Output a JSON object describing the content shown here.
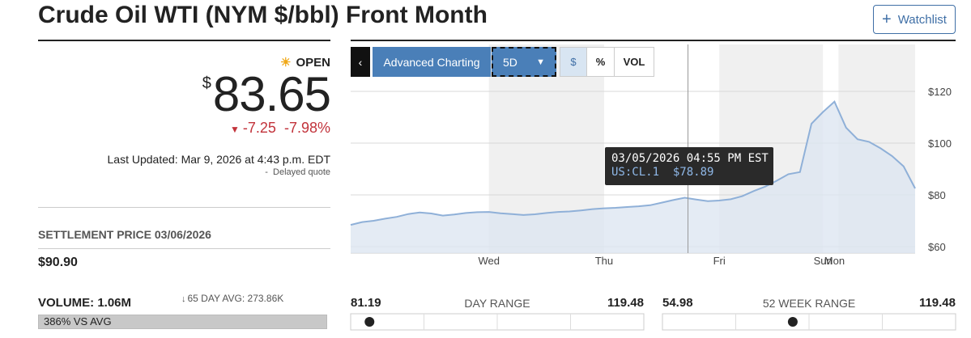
{
  "header": {
    "title": "Crude Oil WTI (NYM $/bbl) Front Month",
    "watchlist": "Watchlist"
  },
  "quote": {
    "status": "OPEN",
    "currency": "$",
    "price": 83.65,
    "change": "-7.25",
    "change_pct": "-7.98%",
    "last_updated": "Last Updated: Mar 9, 2026 at 4:43 p.m. EDT",
    "delayed": "Delayed quote"
  },
  "settlement": {
    "label": "SETTLEMENT PRICE 03/06/2026",
    "value": "$90.90"
  },
  "volume": {
    "label": "VOLUME: 1.06M",
    "avg_label": "65 DAY AVG: 273.86K",
    "vs_avg": "386% VS AVG"
  },
  "day_range": {
    "low": 81.19,
    "label": "DAY RANGE",
    "high": 119.48
  },
  "week52_range": {
    "low": 54.98,
    "label": "52 WEEK RANGE",
    "high": 119.48
  },
  "chart_data": {
    "type": "line",
    "toolbar": [
      "Advanced Charting",
      "5D",
      "$",
      "%",
      "VOL"
    ],
    "categories": [
      null,
      null,
      null,
      null,
      null,
      null,
      null,
      null,
      null,
      null,
      null,
      null,
      "Wed",
      null,
      null,
      null,
      null,
      null,
      null,
      null,
      null,
      null,
      "Thu",
      null,
      null,
      null,
      null,
      null,
      null,
      null,
      null,
      null,
      "Fri",
      null,
      null,
      null,
      null,
      null,
      null,
      null,
      null,
      "Sun",
      "Mon",
      null,
      null,
      null,
      null,
      null,
      null,
      null
    ],
    "values": [
      68.4,
      69.5,
      70.0,
      70.8,
      71.5,
      72.6,
      73.2,
      72.8,
      72.0,
      72.4,
      73.0,
      73.3,
      73.4,
      72.9,
      72.6,
      72.2,
      72.5,
      73.0,
      73.4,
      73.6,
      74.0,
      74.5,
      74.8,
      75.0,
      75.3,
      75.6,
      76.0,
      77.0,
      78.0,
      78.89,
      78.2,
      77.6,
      77.8,
      78.3,
      79.5,
      81.5,
      83.2,
      85.5,
      88.0,
      88.8,
      107.5,
      112.0,
      116.0,
      106.0,
      101.5,
      100.5,
      98.0,
      95.0,
      91.0,
      82.5
    ],
    "color": "#8fb0d8",
    "ylim": [
      57.5,
      138.1
    ],
    "yticks": [
      {
        "value": 60,
        "label": "$60"
      },
      {
        "value": 80,
        "label": "$80"
      },
      {
        "value": 100,
        "label": "$100"
      },
      {
        "value": 120,
        "label": "$120"
      }
    ],
    "grid": true,
    "tooltip": {
      "date": "03/05/2026 04:55 PM EST",
      "symbol": "US:CL.1",
      "value": "$78.89"
    }
  }
}
